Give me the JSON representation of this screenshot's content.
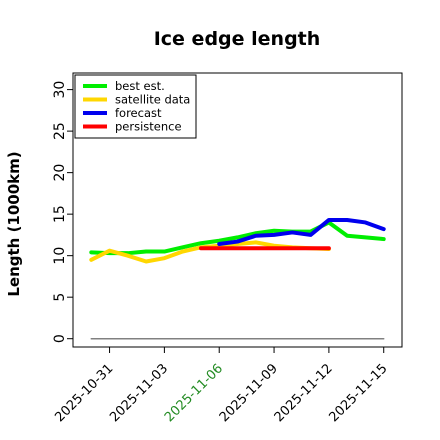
{
  "chart_data": {
    "type": "line",
    "title": "Ice edge length",
    "xlabel": "",
    "ylabel": "Length (1000km)",
    "ylim": [
      -1,
      32
    ],
    "yticks": [
      0,
      5,
      10,
      15,
      20,
      25,
      30
    ],
    "x_ticks": [
      {
        "date": "2025-10-31",
        "label": "2025-10-31",
        "color": "#000000"
      },
      {
        "date": "2025-11-03",
        "label": "2025-11-03",
        "color": "#000000"
      },
      {
        "date": "2025-11-06",
        "label": "2025-11-06",
        "color": "#228B22"
      },
      {
        "date": "2025-11-09",
        "label": "2025-11-09",
        "color": "#000000"
      },
      {
        "date": "2025-11-12",
        "label": "2025-11-12",
        "color": "#000000"
      },
      {
        "date": "2025-11-15",
        "label": "2025-11-15",
        "color": "#000000"
      }
    ],
    "xlim": [
      "2025-10-29",
      "2025-11-16"
    ],
    "legend_position": "top-left",
    "grid": false,
    "series": [
      {
        "name": "best est.",
        "color": "#00ee00",
        "x": [
          "2025-10-30",
          "2025-10-31",
          "2025-11-01",
          "2025-11-02",
          "2025-11-03",
          "2025-11-04",
          "2025-11-05",
          "2025-11-06",
          "2025-11-07",
          "2025-11-08",
          "2025-11-09",
          "2025-11-10",
          "2025-11-11",
          "2025-11-12",
          "2025-11-13",
          "2025-11-14",
          "2025-11-15"
        ],
        "y": [
          10.4,
          10.3,
          10.3,
          10.5,
          10.5,
          11.0,
          11.5,
          11.8,
          12.2,
          12.7,
          13.0,
          12.9,
          12.9,
          14.0,
          12.4,
          12.2,
          12.0
        ]
      },
      {
        "name": "satellite data",
        "color": "#ffd700",
        "x": [
          "2025-10-30",
          "2025-10-31",
          "2025-11-01",
          "2025-11-02",
          "2025-11-03",
          "2025-11-04",
          "2025-11-05",
          "2025-11-06",
          "2025-11-07",
          "2025-11-08",
          "2025-11-09",
          "2025-11-10",
          "2025-11-11",
          "2025-11-12"
        ],
        "y": [
          9.5,
          10.6,
          10.0,
          9.3,
          9.7,
          10.5,
          11.0,
          11.2,
          11.4,
          11.6,
          11.2,
          11.0,
          10.9,
          10.8
        ]
      },
      {
        "name": "forecast",
        "color": "#0000ee",
        "x": [
          "2025-11-06",
          "2025-11-07",
          "2025-11-08",
          "2025-11-09",
          "2025-11-10",
          "2025-11-11",
          "2025-11-12",
          "2025-11-13",
          "2025-11-14",
          "2025-11-15"
        ],
        "y": [
          11.4,
          11.7,
          12.4,
          12.5,
          12.8,
          12.5,
          14.3,
          14.3,
          14.0,
          13.2
        ]
      },
      {
        "name": "persistence",
        "color": "#ff0000",
        "x": [
          "2025-11-05",
          "2025-11-12"
        ],
        "y": [
          10.9,
          10.9
        ]
      },
      {
        "name": "",
        "color": "#808080",
        "x": [
          "2025-10-30",
          "2025-11-15"
        ],
        "y": [
          0,
          0
        ]
      }
    ]
  }
}
